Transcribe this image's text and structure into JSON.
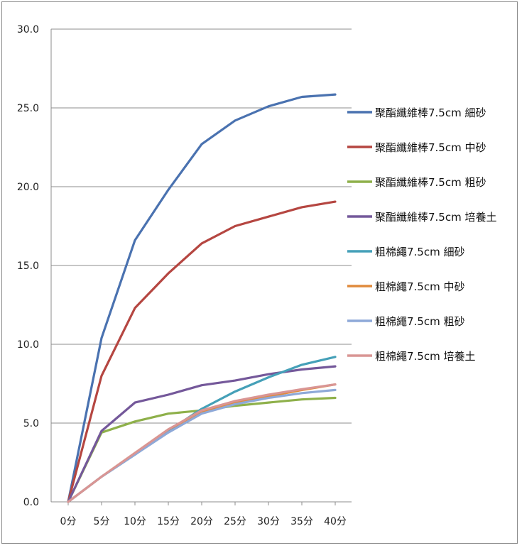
{
  "chart_data": {
    "type": "line",
    "title": "",
    "xlabel": "",
    "ylabel": "",
    "categories": [
      "0分",
      "5分",
      "10分",
      "15分",
      "20分",
      "25分",
      "30分",
      "35分",
      "40分"
    ],
    "y_tick_labels": [
      "0.0",
      "5.0",
      "10.0",
      "15.0",
      "20.0",
      "25.0",
      "30.0"
    ],
    "ylim": [
      0,
      30
    ],
    "grid": "horizontal",
    "legend_position": "right",
    "series": [
      {
        "name": "聚酯纖維棒7.5cm 細砂",
        "color": "#4a72b0",
        "values": [
          0,
          10.4,
          16.6,
          19.8,
          22.7,
          24.2,
          25.1,
          25.7,
          25.85
        ]
      },
      {
        "name": "聚酯纖維棒7.5cm 中砂",
        "color": "#b54641",
        "values": [
          0,
          8.0,
          12.3,
          14.5,
          16.4,
          17.5,
          18.1,
          18.7,
          19.05
        ]
      },
      {
        "name": "聚酯纖維棒7.5cm 粗砂",
        "color": "#8eb04a",
        "values": [
          0,
          4.4,
          5.1,
          5.6,
          5.8,
          6.1,
          6.3,
          6.5,
          6.6
        ]
      },
      {
        "name": "聚酯纖維棒7.5cm 培養土",
        "color": "#74589a",
        "values": [
          0,
          4.5,
          6.3,
          6.8,
          7.4,
          7.7,
          8.1,
          8.4,
          8.6
        ]
      },
      {
        "name": "粗棉繩7.5cm 細砂",
        "color": "#45a0b8",
        "values": [
          0,
          1.6,
          3.0,
          4.5,
          5.9,
          7.0,
          7.9,
          8.7,
          9.2
        ]
      },
      {
        "name": "粗棉繩7.5cm 中砂",
        "color": "#e08a3c",
        "values": [
          0,
          1.6,
          3.1,
          4.6,
          5.7,
          6.3,
          6.7,
          7.1,
          7.45
        ]
      },
      {
        "name": "粗棉繩7.5cm 粗砂",
        "color": "#8ea9d8",
        "values": [
          0,
          1.6,
          3.0,
          4.4,
          5.6,
          6.2,
          6.6,
          6.9,
          7.1
        ]
      },
      {
        "name": "粗棉繩7.5cm 培養土",
        "color": "#d99594",
        "values": [
          0,
          1.6,
          3.1,
          4.6,
          5.8,
          6.4,
          6.8,
          7.15,
          7.45
        ]
      }
    ]
  }
}
